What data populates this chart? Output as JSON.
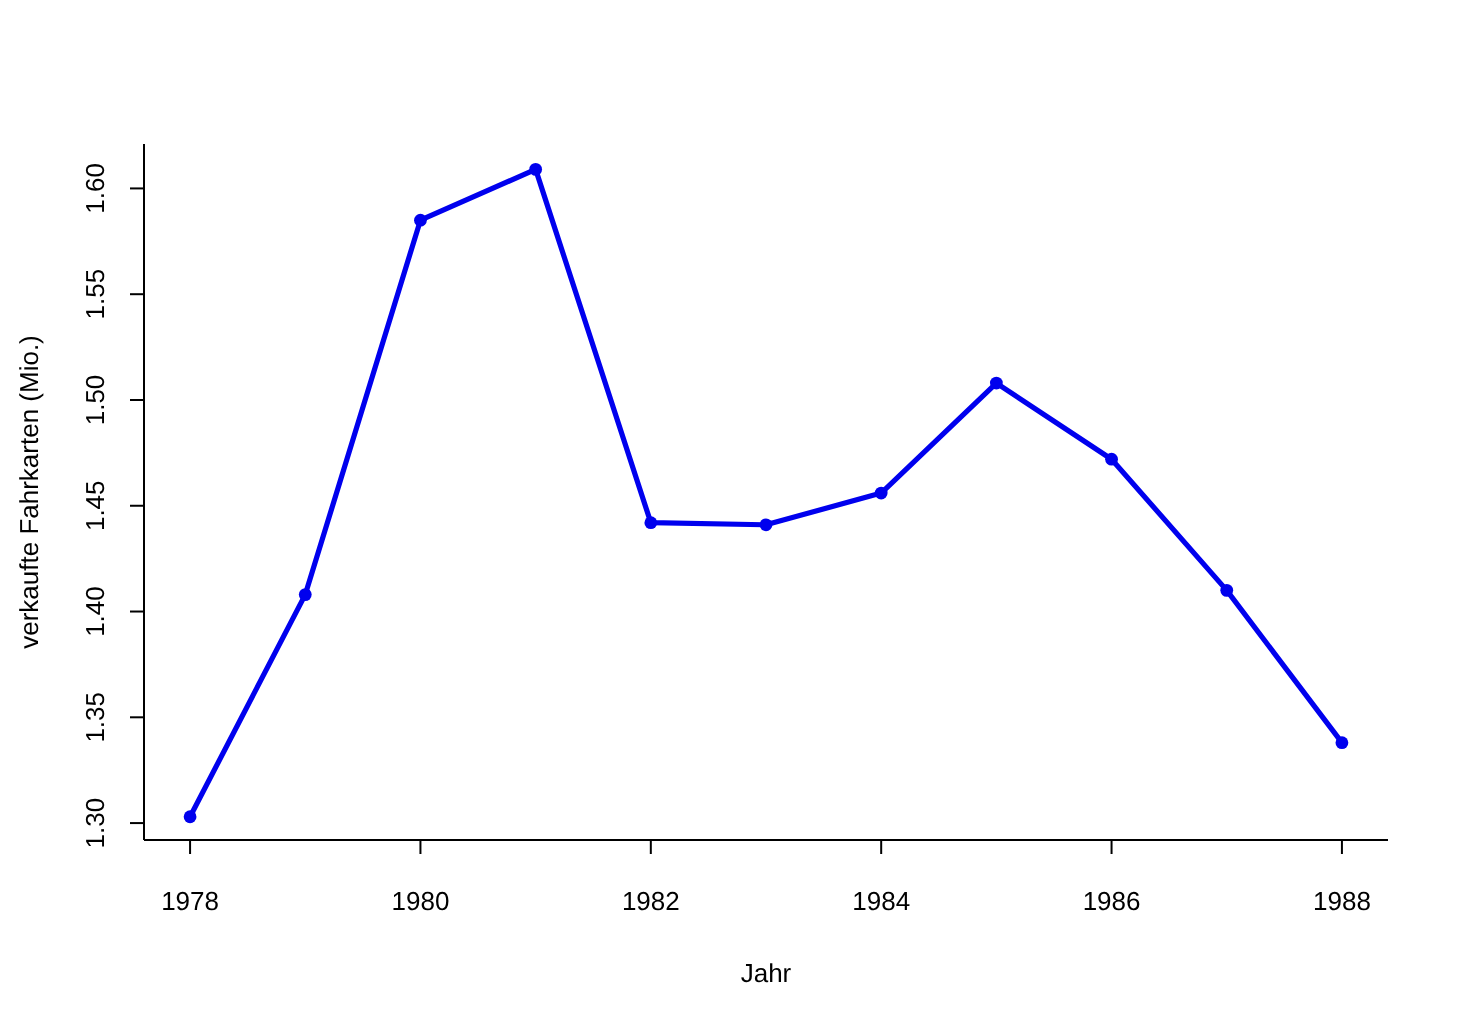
{
  "chart_data": {
    "type": "line",
    "xlabel": "Jahr",
    "ylabel": "verkaufte Fahrkarten (Mio.)",
    "x": [
      1978,
      1979,
      1980,
      1981,
      1982,
      1983,
      1984,
      1985,
      1986,
      1987,
      1988
    ],
    "series": [
      {
        "color": "#0000ee",
        "values": [
          1.303,
          1.408,
          1.585,
          1.609,
          1.442,
          1.441,
          1.456,
          1.508,
          1.472,
          1.41,
          1.338
        ]
      }
    ],
    "xlim": [
      1977.6,
      1988.4
    ],
    "ylim": [
      1.292,
      1.621
    ],
    "xticks": [
      1978,
      1980,
      1982,
      1984,
      1986,
      1988
    ],
    "yticks": [
      {
        "value": 1.3,
        "label": "1.30"
      },
      {
        "value": 1.35,
        "label": "1.35"
      },
      {
        "value": 1.4,
        "label": "1.40"
      },
      {
        "value": 1.45,
        "label": "1.45"
      },
      {
        "value": 1.5,
        "label": "1.50"
      },
      {
        "value": 1.55,
        "label": "1.55"
      },
      {
        "value": 1.6,
        "label": "1.60"
      }
    ],
    "grid": false,
    "marker": "circle",
    "line_style": "solid"
  }
}
